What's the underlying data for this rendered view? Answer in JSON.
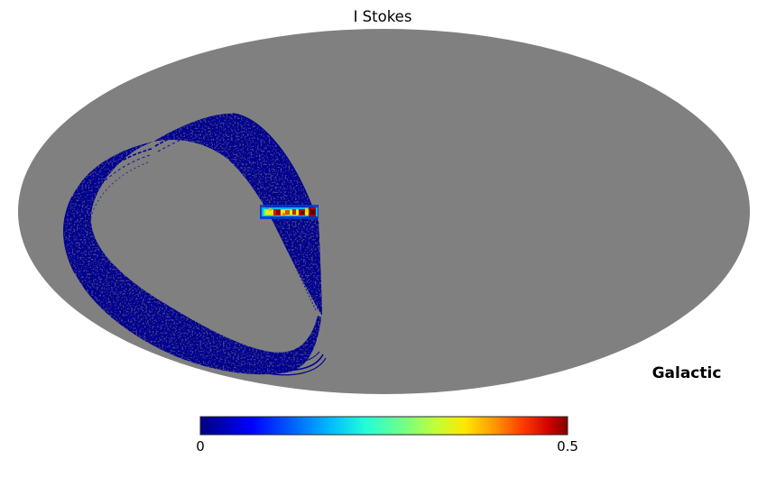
{
  "figure": {
    "title": "I Stokes",
    "coord_label": "Galactic",
    "background_color": "#ffffff",
    "map_bg_color": "#808080",
    "scan_color": "#000090"
  },
  "colorbar": {
    "min_label": "0",
    "max_label": "0.5",
    "colormap": "jet",
    "stops": [
      {
        "o": "0%",
        "c": "#000080"
      },
      {
        "o": "7%",
        "c": "#0000c0"
      },
      {
        "o": "14%",
        "c": "#0000ff"
      },
      {
        "o": "25%",
        "c": "#0060ff"
      },
      {
        "o": "35%",
        "c": "#00b8ff"
      },
      {
        "o": "45%",
        "c": "#20ffd8"
      },
      {
        "o": "55%",
        "c": "#70ff88"
      },
      {
        "o": "64%",
        "c": "#c0ff38"
      },
      {
        "o": "72%",
        "c": "#ffe800"
      },
      {
        "o": "80%",
        "c": "#ff9800"
      },
      {
        "o": "88%",
        "c": "#ff3800"
      },
      {
        "o": "95%",
        "c": "#d00000"
      },
      {
        "o": "100%",
        "c": "#800000"
      }
    ]
  },
  "chart_data": {
    "type": "heatmap",
    "title": "I Stokes",
    "projection": "mollweide",
    "coordinate_system": "Galactic",
    "colorbar": {
      "min": 0,
      "max": 0.5,
      "colormap": "jet",
      "min_label": "0",
      "max_label": "0.5"
    },
    "unobserved_color": "#808080",
    "observed_region": "narrow looping scan ring covering a closed band in the left half of the sky ellipse, values near 0 (dark blue speckle)",
    "hot_feature": "short bright segment along the galactic plane (map center latitude) near longitude of the ring's right edge, values rising through cyan/green/yellow to saturated dark red (~0.5)",
    "legend_position": "horizontal colorbar below map"
  }
}
